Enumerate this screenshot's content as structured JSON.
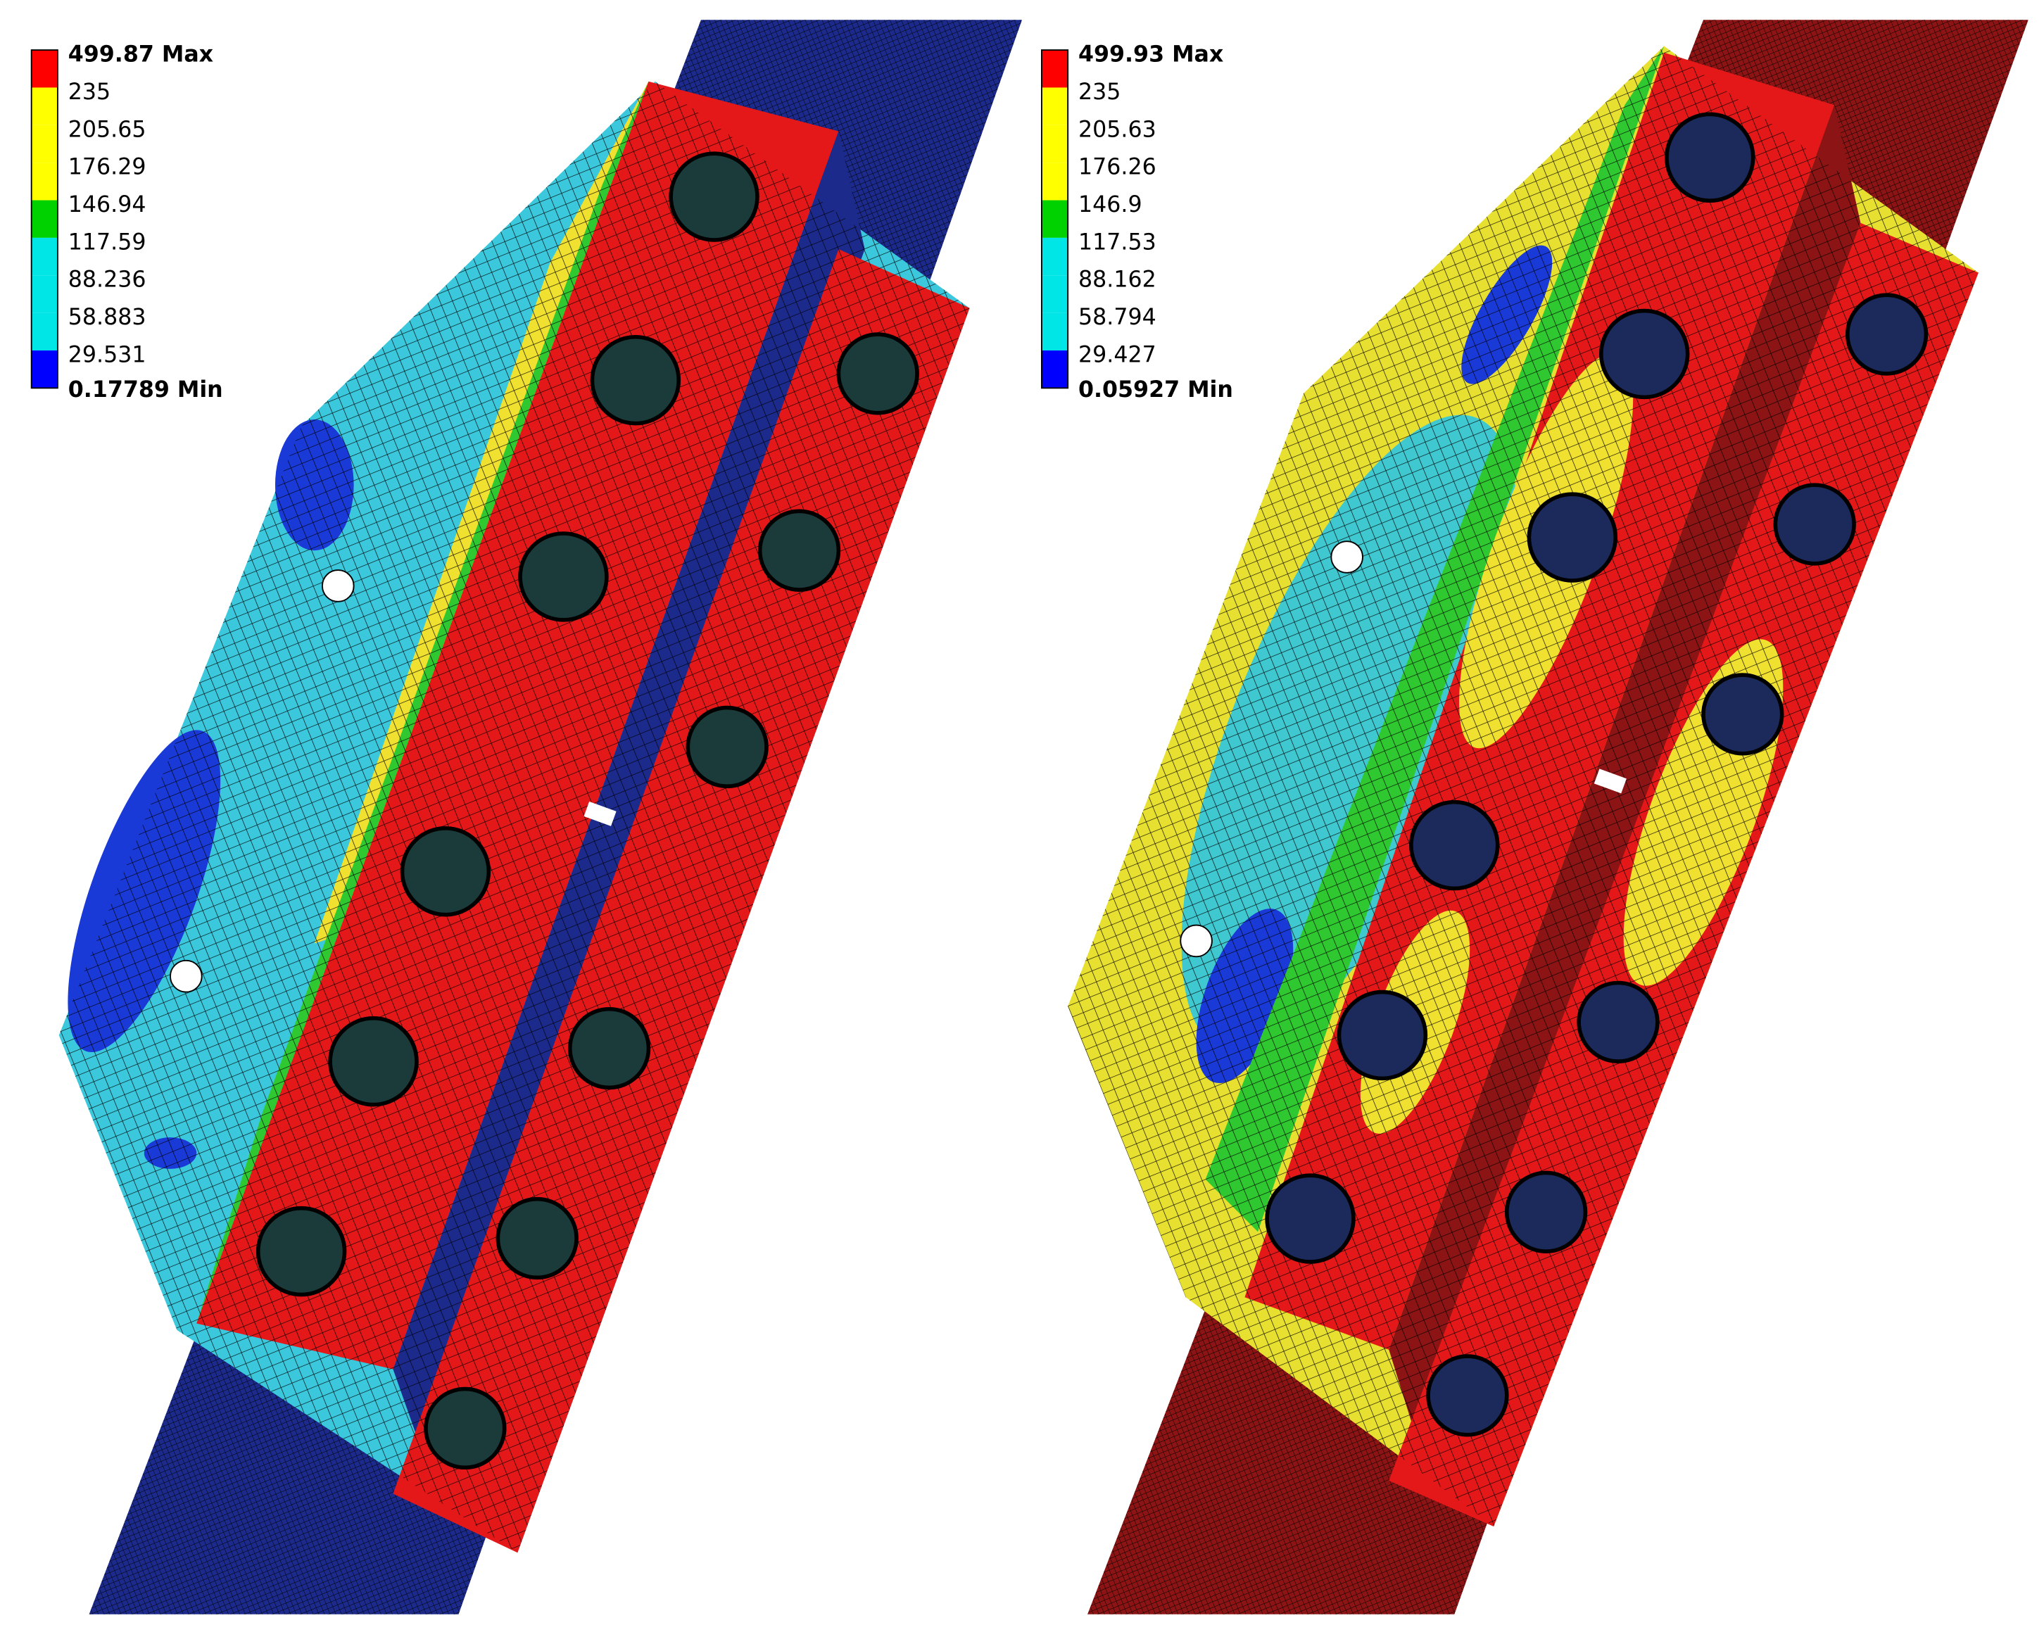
{
  "panels": [
    {
      "legend": {
        "max": "499.87 Max",
        "levels": [
          "235",
          "205.65",
          "176.29",
          "146.94",
          "117.59",
          "88.236",
          "58.883",
          "29.531"
        ],
        "min": "0.17789 Min",
        "colors": [
          "#ff0000",
          "#ffff00",
          "#ffff00",
          "#ffff00",
          "#00d200",
          "#00e6e6",
          "#00e6e6",
          "#00e6e6",
          "#0000ff"
        ]
      }
    },
    {
      "legend": {
        "max": "499.93 Max",
        "levels": [
          "235",
          "205.63",
          "176.26",
          "146.9",
          "117.53",
          "88.162",
          "58.794",
          "29.427"
        ],
        "min": "0.05927 Min",
        "colors": [
          "#ff0000",
          "#ffff00",
          "#ffff00",
          "#ffff00",
          "#00d200",
          "#00e6e6",
          "#00e6e6",
          "#00e6e6",
          "#0000ff"
        ]
      }
    }
  ]
}
